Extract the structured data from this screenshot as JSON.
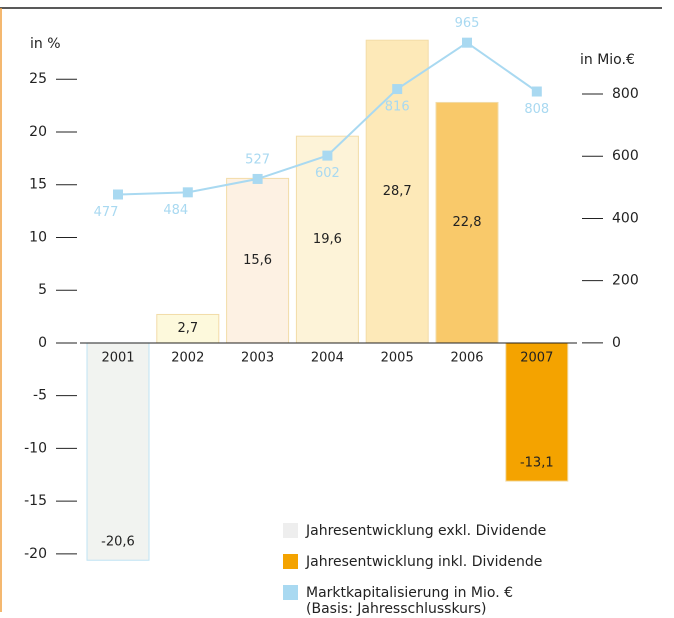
{
  "chart_data": {
    "type": "bar",
    "y_label": "in %",
    "y2_label": "in Mio.€",
    "categories": [
      "2001",
      "2002",
      "2003",
      "2004",
      "2005",
      "2006",
      "2007"
    ],
    "ylim": [
      -22,
      30
    ],
    "yticks": [
      25,
      20,
      15,
      10,
      5,
      0,
      -5,
      -10,
      -15,
      -20
    ],
    "y2lim": [
      -746,
      1017
    ],
    "y2ticks": [
      800,
      600,
      400,
      200,
      0
    ],
    "series": [
      {
        "type": "bar",
        "values": [
          -20.6,
          2.7,
          15.6,
          19.6,
          28.7,
          22.8,
          -13.1
        ],
        "value_labels": [
          "-20,6",
          "2,7",
          "15,6",
          "19,6",
          "28,7",
          "22,8",
          "-13,1"
        ],
        "colors": [
          "#f1f3f0",
          "#fdf9dc",
          "#fdf1e3",
          "#fdf3d8",
          "#fde9b8",
          "#f9c96a",
          "#f4a300"
        ]
      },
      {
        "type": "line",
        "axis": "y2",
        "name": "Marktkapitalisierung in Mio. €",
        "color": "#a9d9f1",
        "values": [
          477,
          484,
          527,
          602,
          816,
          965,
          808
        ]
      }
    ],
    "legend": [
      {
        "label": "Jahresentwicklung exkl. Dividende",
        "color": "#eeeeee"
      },
      {
        "label": "Jahresentwicklung inkl. Dividende",
        "color": "#f4a300"
      }
    ],
    "note": "(Basis: Jahresschlusskurs)"
  }
}
